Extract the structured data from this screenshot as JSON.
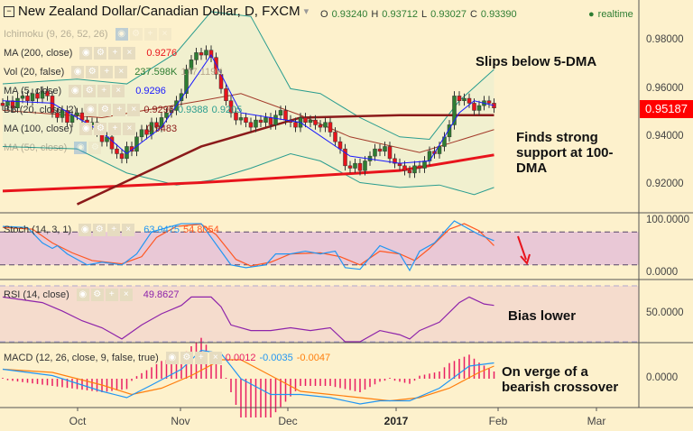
{
  "header": {
    "title": "New Zealand Dollar/Canadian Dollar, D, FXCM",
    "ohlc": [
      {
        "k": "O",
        "v": "0.93240"
      },
      {
        "k": "H",
        "v": "0.93712"
      },
      {
        "k": "L",
        "v": "0.93027"
      },
      {
        "k": "C",
        "v": "0.93390"
      }
    ],
    "realtime": "realtime"
  },
  "legend": {
    "ichimoku": "Ichimoku (9, 26, 52, 26)",
    "ma200": {
      "label": "MA (200, close)",
      "value": "0.9276",
      "color": "#e8141c"
    },
    "vol": {
      "label": "Vol (20, false)",
      "value": "237.598K",
      "value2": "177.119K"
    },
    "ma5": {
      "label": "MA (5, close)",
      "value": "0.9296"
    },
    "bb": {
      "label": "BB (20, close, 2)",
      "v1": "0.9296",
      "v2": "0.9388",
      "v3": "0.9205"
    },
    "ma100": {
      "label": "MA (100, close)",
      "value": "0.9483"
    },
    "ma50": {
      "label": "MA (50, close)"
    },
    "stoch": {
      "label": "Stoch (14, 3, 1)",
      "k": "63.9475",
      "d": "54.8054"
    },
    "rsi": {
      "label": "RSI (14, close)",
      "value": "49.8627"
    },
    "macd": {
      "label": "MACD (12, 26, close, 9, false, true)",
      "hist": "0.0012",
      "macd": "-0.0035",
      "signal": "-0.0047"
    }
  },
  "annotations": {
    "a1": "Slips below 5-DMA",
    "a2": "Finds strong support at 100-DMA",
    "a3": "Bias lower",
    "a4": "On verge of a bearish crossover"
  },
  "price_axis": {
    "ticks": [
      "0.98000",
      "0.96000",
      "0.94000",
      "0.92000"
    ],
    "last_price": "0.95187",
    "last_color": "#ff0000"
  },
  "stoch_axis": [
    "100.0000",
    "0.0000"
  ],
  "rsi_axis": [
    "50.0000"
  ],
  "macd_axis": [
    "0.0000"
  ],
  "date_axis": [
    "Oct",
    "Nov",
    "Dec",
    "2017",
    "Feb",
    "Mar"
  ],
  "chart_data": {
    "type": "candlestick",
    "closes": [
      0.953,
      0.955,
      0.952,
      0.956,
      0.957,
      0.955,
      0.958,
      0.956,
      0.959,
      0.957,
      0.95,
      0.948,
      0.951,
      0.946,
      0.949,
      0.95,
      0.947,
      0.945,
      0.946,
      0.942,
      0.938,
      0.94,
      0.935,
      0.933,
      0.931,
      0.936,
      0.934,
      0.94,
      0.943,
      0.941,
      0.946,
      0.944,
      0.948,
      0.95,
      0.951,
      0.955,
      0.958,
      0.968,
      0.972,
      0.975,
      0.974,
      0.976,
      0.973,
      0.966,
      0.96,
      0.955,
      0.95,
      0.947,
      0.948,
      0.946,
      0.944,
      0.947,
      0.946,
      0.948,
      0.945,
      0.949,
      0.951,
      0.947,
      0.946,
      0.944,
      0.948,
      0.946,
      0.947,
      0.945,
      0.944,
      0.946,
      0.942,
      0.938,
      0.935,
      0.928,
      0.927,
      0.929,
      0.926,
      0.93,
      0.932,
      0.935,
      0.934,
      0.936,
      0.931,
      0.929,
      0.928,
      0.926,
      0.925,
      0.928,
      0.927,
      0.93,
      0.934,
      0.933,
      0.936,
      0.94,
      0.945,
      0.957,
      0.955,
      0.956,
      0.954,
      0.951,
      0.953,
      0.955,
      0.954,
      0.952
    ],
    "ylim": [
      0.905,
      0.995
    ],
    "ma200": [
      [
        0,
        0.9175
      ],
      [
        40,
        0.921
      ],
      [
        80,
        0.926
      ],
      [
        99,
        0.9325
      ]
    ],
    "ma100": [
      [
        15,
        0.912
      ],
      [
        40,
        0.936
      ],
      [
        60,
        0.948
      ],
      [
        80,
        0.949
      ],
      [
        99,
        0.949
      ]
    ],
    "ma50": [
      [
        0,
        0.951
      ],
      [
        20,
        0.948
      ],
      [
        40,
        0.955
      ],
      [
        48,
        0.958
      ],
      [
        60,
        0.949
      ],
      [
        70,
        0.94
      ],
      [
        84,
        0.9335
      ],
      [
        99,
        0.943
      ]
    ],
    "ma5": [
      [
        0,
        0.955
      ],
      [
        10,
        0.954
      ],
      [
        20,
        0.942
      ],
      [
        25,
        0.933
      ],
      [
        32,
        0.944
      ],
      [
        38,
        0.962
      ],
      [
        42,
        0.974
      ],
      [
        48,
        0.95
      ],
      [
        60,
        0.946
      ],
      [
        70,
        0.932
      ],
      [
        80,
        0.929
      ],
      [
        86,
        0.93
      ],
      [
        92,
        0.95
      ],
      [
        95,
        0.955
      ],
      [
        99,
        0.953
      ]
    ],
    "bb_upper": [
      [
        0,
        0.962
      ],
      [
        15,
        0.964
      ],
      [
        25,
        0.962
      ],
      [
        35,
        0.975
      ],
      [
        42,
        0.992
      ],
      [
        50,
        0.99
      ],
      [
        58,
        0.96
      ],
      [
        64,
        0.958
      ],
      [
        72,
        0.948
      ],
      [
        80,
        0.94
      ],
      [
        86,
        0.939
      ],
      [
        92,
        0.955
      ],
      [
        99,
        0.968
      ]
    ],
    "bb_lower": [
      [
        0,
        0.936
      ],
      [
        15,
        0.935
      ],
      [
        25,
        0.925
      ],
      [
        35,
        0.92
      ],
      [
        42,
        0.922
      ],
      [
        50,
        0.927
      ],
      [
        58,
        0.933
      ],
      [
        64,
        0.93
      ],
      [
        72,
        0.921
      ],
      [
        80,
        0.919
      ],
      [
        88,
        0.92
      ],
      [
        95,
        0.916
      ],
      [
        99,
        0.919
      ]
    ],
    "stoch_k": [
      [
        0,
        90
      ],
      [
        5,
        88
      ],
      [
        8,
        60
      ],
      [
        10,
        50
      ],
      [
        11,
        55
      ],
      [
        13,
        40
      ],
      [
        17,
        20
      ],
      [
        20,
        25
      ],
      [
        24,
        20
      ],
      [
        27,
        40
      ],
      [
        30,
        80
      ],
      [
        34,
        90
      ],
      [
        36,
        95
      ],
      [
        40,
        95
      ],
      [
        42,
        70
      ],
      [
        46,
        20
      ],
      [
        49,
        15
      ],
      [
        53,
        20
      ],
      [
        55,
        40
      ],
      [
        58,
        40
      ],
      [
        61,
        45
      ],
      [
        64,
        40
      ],
      [
        67,
        45
      ],
      [
        69,
        15
      ],
      [
        72,
        12
      ],
      [
        76,
        55
      ],
      [
        80,
        40
      ],
      [
        82,
        10
      ],
      [
        84,
        45
      ],
      [
        87,
        60
      ],
      [
        89,
        80
      ],
      [
        91,
        100
      ],
      [
        93,
        90
      ],
      [
        96,
        75
      ],
      [
        99,
        64
      ]
    ],
    "stoch_d": [
      [
        0,
        88
      ],
      [
        6,
        85
      ],
      [
        10,
        60
      ],
      [
        14,
        42
      ],
      [
        18,
        28
      ],
      [
        24,
        22
      ],
      [
        28,
        35
      ],
      [
        31,
        70
      ],
      [
        35,
        90
      ],
      [
        40,
        94
      ],
      [
        43,
        75
      ],
      [
        47,
        30
      ],
      [
        50,
        18
      ],
      [
        54,
        25
      ],
      [
        58,
        40
      ],
      [
        64,
        42
      ],
      [
        68,
        35
      ],
      [
        72,
        20
      ],
      [
        76,
        45
      ],
      [
        80,
        40
      ],
      [
        83,
        28
      ],
      [
        86,
        50
      ],
      [
        90,
        85
      ],
      [
        93,
        95
      ],
      [
        96,
        82
      ],
      [
        99,
        55
      ]
    ],
    "rsi": [
      [
        0,
        62
      ],
      [
        8,
        58
      ],
      [
        12,
        52
      ],
      [
        16,
        45
      ],
      [
        20,
        40
      ],
      [
        24,
        32
      ],
      [
        28,
        42
      ],
      [
        32,
        50
      ],
      [
        36,
        56
      ],
      [
        38,
        62
      ],
      [
        42,
        62
      ],
      [
        44,
        55
      ],
      [
        46,
        42
      ],
      [
        50,
        38
      ],
      [
        54,
        38
      ],
      [
        58,
        40
      ],
      [
        62,
        38
      ],
      [
        66,
        40
      ],
      [
        69,
        30
      ],
      [
        72,
        30
      ],
      [
        76,
        38
      ],
      [
        80,
        35
      ],
      [
        82,
        32
      ],
      [
        84,
        38
      ],
      [
        88,
        44
      ],
      [
        92,
        58
      ],
      [
        94,
        62
      ],
      [
        97,
        57
      ],
      [
        99,
        56
      ]
    ],
    "macd": [
      [
        0,
        0.003
      ],
      [
        10,
        0.001
      ],
      [
        20,
        -0.004
      ],
      [
        25,
        -0.006
      ],
      [
        30,
        -0.002
      ],
      [
        36,
        0.003
      ],
      [
        40,
        0.009
      ],
      [
        44,
        0.008
      ],
      [
        48,
        0.0
      ],
      [
        54,
        -0.005
      ],
      [
        60,
        -0.005
      ],
      [
        66,
        -0.006
      ],
      [
        72,
        -0.008
      ],
      [
        76,
        -0.007
      ],
      [
        82,
        -0.007
      ],
      [
        88,
        -0.003
      ],
      [
        94,
        0.004
      ],
      [
        99,
        0.005
      ]
    ],
    "signal": [
      [
        0,
        0.003
      ],
      [
        10,
        0.002
      ],
      [
        20,
        -0.002
      ],
      [
        26,
        -0.005
      ],
      [
        32,
        -0.003
      ],
      [
        38,
        0.001
      ],
      [
        44,
        0.006
      ],
      [
        48,
        0.006
      ],
      [
        54,
        0.001
      ],
      [
        60,
        -0.004
      ],
      [
        66,
        -0.005
      ],
      [
        72,
        -0.006
      ],
      [
        78,
        -0.007
      ],
      [
        84,
        -0.006
      ],
      [
        90,
        -0.003
      ],
      [
        96,
        0.002
      ],
      [
        99,
        0.004
      ]
    ],
    "colors": {
      "up": "#2e7d32",
      "down": "#e8141c",
      "ma200": "#e8141c",
      "ma100": "#8b1a1a",
      "ma50": "#a33a2a",
      "ma5": "#1a1aff",
      "bb": "#2a9d8f",
      "stoch_k": "#2196f3",
      "stoch_d": "#ff5722",
      "rsi": "#8e24aa",
      "macd": "#2196f3",
      "signal": "#ff7f0e",
      "hist": "#e91e63"
    }
  }
}
